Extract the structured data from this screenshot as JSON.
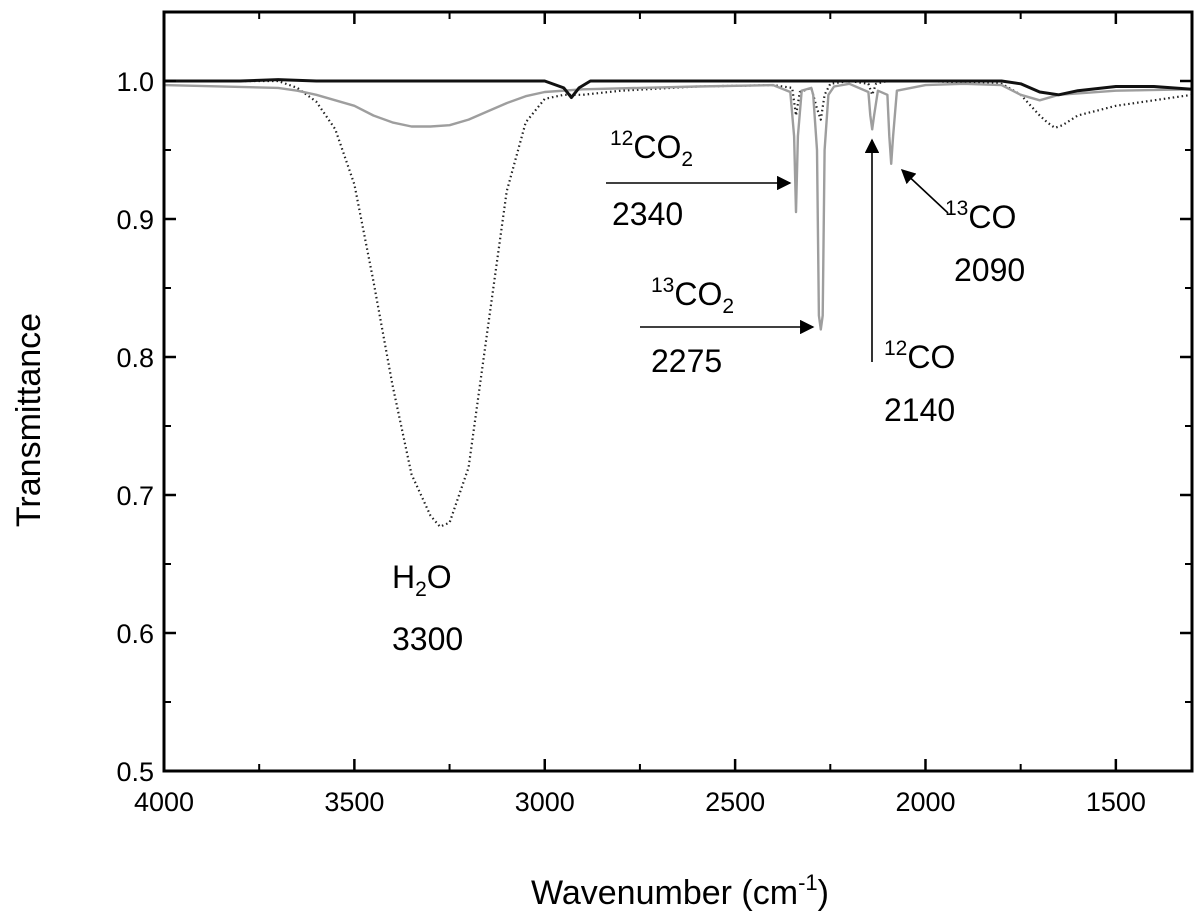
{
  "chart_data": {
    "type": "line",
    "xlabel": "Wavenumber (cm",
    "xlabel_sup": "-1",
    "xlabel_close": ")",
    "ylabel": "Transmittance",
    "xlim": [
      4000,
      1300
    ],
    "ylim": [
      0.5,
      1.05
    ],
    "x_ticks": [
      4000,
      3500,
      3000,
      2500,
      2000,
      1500
    ],
    "x_tick_labels": [
      "4000",
      "3500",
      "3000",
      "2500",
      "2000",
      "1500"
    ],
    "y_ticks": [
      0.5,
      0.6,
      0.7,
      0.8,
      0.9,
      1.0
    ],
    "y_tick_labels": [
      "0.5",
      "0.6",
      "0.7",
      "0.8",
      "0.9",
      "1.0"
    ],
    "grid": false,
    "legend": "none",
    "series": [
      {
        "style": "dotted",
        "color": "#222222",
        "x": [
          4000,
          3800,
          3700,
          3650,
          3600,
          3550,
          3500,
          3450,
          3400,
          3350,
          3300,
          3275,
          3250,
          3200,
          3150,
          3100,
          3050,
          3000,
          2950,
          2900,
          2800,
          2600,
          2400,
          2350,
          2340,
          2330,
          2300,
          2285,
          2275,
          2265,
          2250,
          2200,
          2150,
          2140,
          2130,
          2100,
          2000,
          1900,
          1800,
          1750,
          1700,
          1680,
          1660,
          1640,
          1600,
          1500,
          1400,
          1300
        ],
        "y": [
          1.0,
          1.0,
          1.0,
          0.995,
          0.985,
          0.965,
          0.925,
          0.855,
          0.78,
          0.715,
          0.685,
          0.677,
          0.68,
          0.72,
          0.82,
          0.92,
          0.97,
          0.987,
          0.99,
          0.99,
          0.993,
          0.996,
          0.997,
          0.995,
          0.975,
          0.992,
          0.995,
          0.98,
          0.972,
          0.99,
          0.998,
          1.0,
          0.998,
          0.99,
          0.998,
          1.0,
          1.0,
          0.999,
          0.998,
          0.99,
          0.975,
          0.97,
          0.966,
          0.968,
          0.975,
          0.982,
          0.986,
          0.99
        ]
      },
      {
        "style": "solid",
        "color": "#9e9e9e",
        "x": [
          4000,
          3700,
          3650,
          3600,
          3500,
          3450,
          3400,
          3350,
          3300,
          3250,
          3200,
          3150,
          3100,
          3050,
          3000,
          2900,
          2600,
          2400,
          2355,
          2345,
          2340,
          2335,
          2325,
          2300,
          2295,
          2285,
          2280,
          2275,
          2270,
          2265,
          2255,
          2240,
          2200,
          2150,
          2145,
          2140,
          2135,
          2125,
          2100,
          2095,
          2090,
          2085,
          2075,
          2000,
          1900,
          1800,
          1750,
          1700,
          1650,
          1500,
          1300
        ],
        "y": [
          0.997,
          0.995,
          0.993,
          0.99,
          0.982,
          0.975,
          0.97,
          0.967,
          0.967,
          0.968,
          0.972,
          0.978,
          0.984,
          0.989,
          0.992,
          0.994,
          0.996,
          0.997,
          0.992,
          0.96,
          0.905,
          0.96,
          0.993,
          0.995,
          0.99,
          0.95,
          0.83,
          0.82,
          0.83,
          0.95,
          0.99,
          0.996,
          0.998,
          0.992,
          0.975,
          0.965,
          0.975,
          0.993,
          0.99,
          0.96,
          0.94,
          0.96,
          0.993,
          0.997,
          0.998,
          0.997,
          0.99,
          0.986,
          0.99,
          0.993,
          0.994
        ]
      },
      {
        "style": "solid",
        "color": "#111111",
        "x": [
          4000,
          3800,
          3700,
          3600,
          3400,
          3200,
          3000,
          2950,
          2930,
          2910,
          2880,
          2800,
          2600,
          2400,
          2200,
          2000,
          1800,
          1750,
          1700,
          1650,
          1600,
          1500,
          1400,
          1300
        ],
        "y": [
          1.0,
          1.0,
          1.001,
          1.0,
          1.0,
          1.0,
          1.0,
          0.995,
          0.988,
          0.995,
          1.0,
          1.0,
          1.0,
          1.0,
          1.0,
          1.0,
          1.0,
          0.998,
          0.992,
          0.99,
          0.993,
          0.996,
          0.996,
          0.994
        ]
      }
    ],
    "annotations": [
      {
        "id": "h2o",
        "pre": "",
        "sup": "",
        "main": "H",
        "sub": "2",
        "post": "O",
        "value": "3300"
      },
      {
        "id": "co2-12",
        "pre": "",
        "sup": "12",
        "main": "CO",
        "sub": "2",
        "post": "",
        "value": "2340"
      },
      {
        "id": "co2-13",
        "pre": "",
        "sup": "13",
        "main": "CO",
        "sub": "2",
        "post": "",
        "value": "2275"
      },
      {
        "id": "co-12",
        "pre": "",
        "sup": "12",
        "main": "CO",
        "sub": "",
        "post": "",
        "value": "2140"
      },
      {
        "id": "co-13",
        "pre": "",
        "sup": "13",
        "main": "CO",
        "sub": "",
        "post": "",
        "value": "2090"
      }
    ]
  }
}
